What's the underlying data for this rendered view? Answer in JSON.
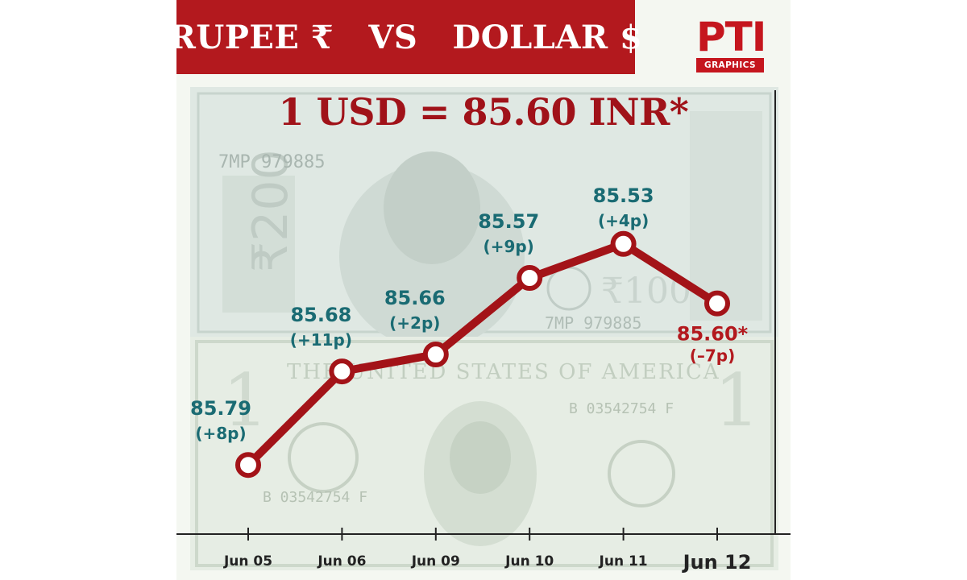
{
  "header": {
    "title": "RUPEE ₹   VS   DOLLAR $",
    "logo_top": "PTI",
    "logo_bottom": "GRAPHICS"
  },
  "headline": "1 USD = 85.60 INR*",
  "colors": {
    "accent_red": "#b3191e",
    "line": "#a31318",
    "label_teal": "#1a6b73",
    "label_last": "#b3191e"
  },
  "chart_data": {
    "type": "line",
    "categories": [
      "Jun 05",
      "Jun 06",
      "Jun 09",
      "Jun 10",
      "Jun 11",
      "Jun 12"
    ],
    "values": [
      85.79,
      85.68,
      85.66,
      85.57,
      85.53,
      85.6
    ],
    "value_labels": [
      "85.79",
      "85.68",
      "85.66",
      "85.57",
      "85.53",
      "85.60*"
    ],
    "change_labels": [
      "(+8p)",
      "(+11p)",
      "(+2p)",
      "(+9p)",
      "(+4p)",
      "(–7p)"
    ],
    "y_axis_inverted": true,
    "ylim": [
      85.48,
      85.84
    ],
    "title": "1 USD = 85.60 INR*",
    "xlabel": "",
    "ylabel": "",
    "grid": false
  }
}
